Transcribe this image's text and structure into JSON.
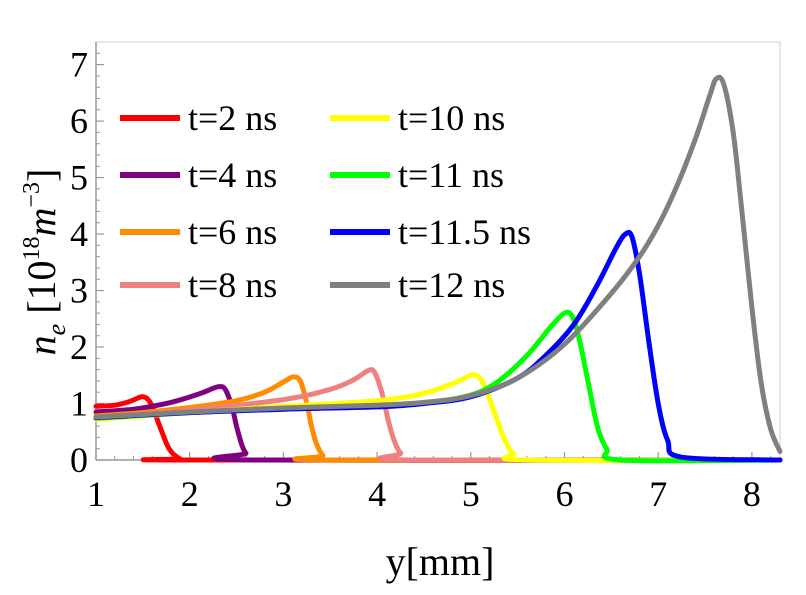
{
  "chart_data": {
    "type": "line",
    "title": "",
    "xlabel": "y[mm]",
    "ylabel": {
      "symbol": "n",
      "subscript": "e",
      "open": "[10",
      "exponent": "18",
      "unit": "m",
      "unit_exponent": "−3",
      "close": "]"
    },
    "xlim": [
      1,
      8.3
    ],
    "ylim": [
      0,
      7.4
    ],
    "x_ticks": [
      1,
      2,
      3,
      4,
      5,
      6,
      7,
      8
    ],
    "y_ticks": [
      0,
      1,
      2,
      3,
      4,
      5,
      6,
      7
    ],
    "grid": false,
    "legend_position": "top-left",
    "series": [
      {
        "name": "t=2 ns",
        "color": "#ff0000",
        "x": [
          1.0,
          1.2,
          1.35,
          1.45,
          1.5,
          1.55,
          1.6,
          1.68,
          1.75,
          1.8,
          1.85,
          1.9,
          2.0,
          8.3
        ],
        "y": [
          0.95,
          0.97,
          1.03,
          1.1,
          1.12,
          1.08,
          0.95,
          0.6,
          0.3,
          0.15,
          0.07,
          0.02,
          0.0,
          0.0
        ]
      },
      {
        "name": "t=4 ns",
        "color": "#800080",
        "x": [
          1.0,
          1.4,
          1.8,
          2.1,
          2.25,
          2.32,
          2.38,
          2.45,
          2.5,
          2.55,
          2.6,
          2.7,
          8.3
        ],
        "y": [
          0.85,
          0.9,
          1.02,
          1.17,
          1.27,
          1.3,
          1.25,
          0.95,
          0.6,
          0.3,
          0.12,
          0.0,
          0.0
        ]
      },
      {
        "name": "t=6 ns",
        "color": "#ff8c00",
        "x": [
          1.0,
          1.5,
          2.0,
          2.5,
          2.8,
          3.0,
          3.1,
          3.18,
          3.25,
          3.3,
          3.35,
          3.42,
          3.5,
          8.3
        ],
        "y": [
          0.78,
          0.84,
          0.93,
          1.05,
          1.2,
          1.38,
          1.47,
          1.4,
          1.0,
          0.6,
          0.3,
          0.08,
          0.0,
          0.0
        ]
      },
      {
        "name": "t=8 ns",
        "color": "#f08080",
        "x": [
          1.0,
          2.0,
          3.0,
          3.5,
          3.75,
          3.9,
          3.97,
          4.05,
          4.12,
          4.18,
          4.25,
          4.35,
          8.3
        ],
        "y": [
          0.74,
          0.88,
          1.07,
          1.25,
          1.42,
          1.58,
          1.56,
          1.2,
          0.7,
          0.35,
          0.12,
          0.0,
          0.0
        ]
      },
      {
        "name": "t=10 ns",
        "color": "#ffff00",
        "x": [
          1.0,
          2.0,
          3.0,
          4.0,
          4.5,
          4.85,
          5.0,
          5.08,
          5.15,
          5.25,
          5.35,
          5.45,
          5.6,
          8.3
        ],
        "y": [
          0.72,
          0.84,
          0.95,
          1.05,
          1.18,
          1.38,
          1.5,
          1.48,
          1.3,
          0.85,
          0.4,
          0.12,
          0.0,
          0.0
        ]
      },
      {
        "name": "t=11 ns",
        "color": "#00ff00",
        "x": [
          1.0,
          2.0,
          3.0,
          4.0,
          4.5,
          5.0,
          5.3,
          5.6,
          5.85,
          6.0,
          6.08,
          6.15,
          6.25,
          6.35,
          6.45,
          6.6,
          8.3
        ],
        "y": [
          0.74,
          0.84,
          0.9,
          0.95,
          1.0,
          1.15,
          1.4,
          1.85,
          2.35,
          2.6,
          2.55,
          2.2,
          1.4,
          0.6,
          0.2,
          0.0,
          0.0
        ]
      },
      {
        "name": "t=11.5 ns",
        "color": "#0000ff",
        "x": [
          1.0,
          2.0,
          3.0,
          4.0,
          4.5,
          5.0,
          5.5,
          5.8,
          6.1,
          6.35,
          6.55,
          6.65,
          6.72,
          6.8,
          6.9,
          7.0,
          7.1,
          7.25,
          8.3
        ],
        "y": [
          0.75,
          0.84,
          0.9,
          0.94,
          1.0,
          1.12,
          1.45,
          1.85,
          2.4,
          3.1,
          3.75,
          4.0,
          3.95,
          3.3,
          2.1,
          1.0,
          0.35,
          0.05,
          0.0
        ]
      },
      {
        "name": "t=12 ns",
        "color": "#808080",
        "x": [
          1.0,
          2.0,
          3.0,
          4.0,
          4.5,
          5.0,
          5.5,
          6.0,
          6.5,
          6.8,
          7.0,
          7.2,
          7.4,
          7.55,
          7.62,
          7.7,
          7.8,
          7.9,
          8.0,
          8.1,
          8.2,
          8.3
        ],
        "y": [
          0.76,
          0.85,
          0.92,
          0.97,
          1.02,
          1.14,
          1.45,
          2.05,
          2.95,
          3.6,
          4.15,
          4.85,
          5.7,
          6.45,
          6.75,
          6.65,
          5.8,
          4.3,
          2.7,
          1.35,
          0.55,
          0.15
        ]
      }
    ]
  }
}
